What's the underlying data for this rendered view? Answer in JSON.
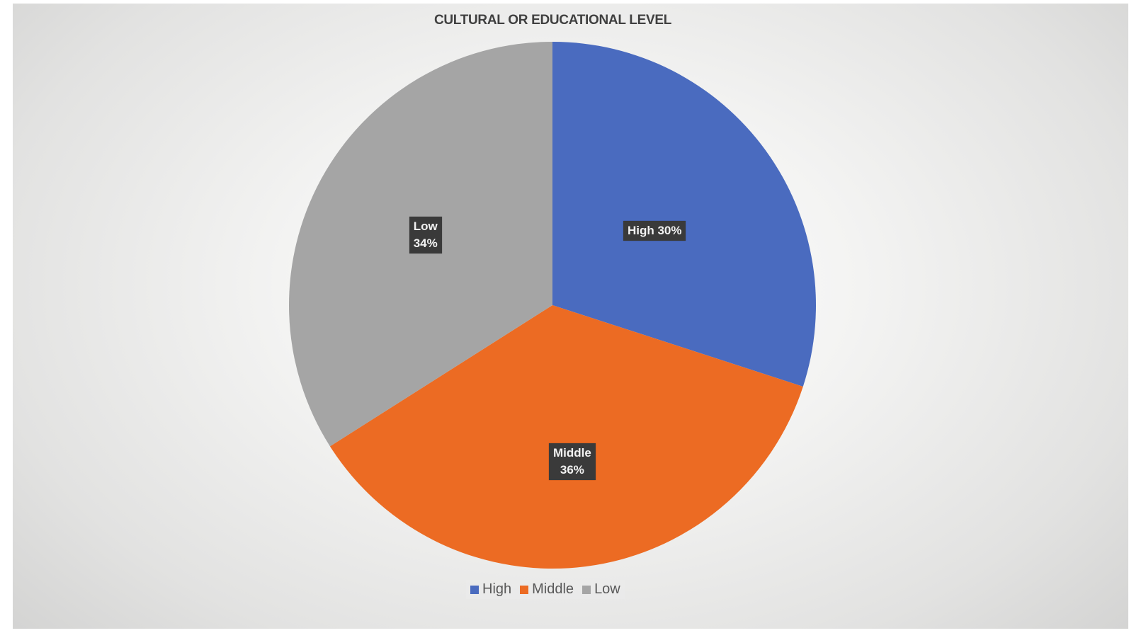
{
  "chart_data": {
    "type": "pie",
    "title": "CULTURAL OR EDUCATIONAL LEVEL",
    "categories": [
      "High",
      "Middle",
      "Low"
    ],
    "values": [
      30,
      36,
      34
    ],
    "unit": "%",
    "colors": [
      "#4a6bbf",
      "#ec6b23",
      "#a5a5a5"
    ],
    "data_labels": [
      "High 30%",
      "Middle\n36%",
      "Low\n34%"
    ],
    "legend": {
      "position": "bottom",
      "entries": [
        "High",
        "Middle",
        "Low"
      ]
    },
    "start_angle_deg": 0,
    "direction": "clockwise"
  },
  "legend": {
    "items": [
      {
        "label": "High",
        "color": "#4a6bbf"
      },
      {
        "label": "Middle",
        "color": "#ec6b23"
      },
      {
        "label": "Low",
        "color": "#a5a5a5"
      }
    ]
  }
}
